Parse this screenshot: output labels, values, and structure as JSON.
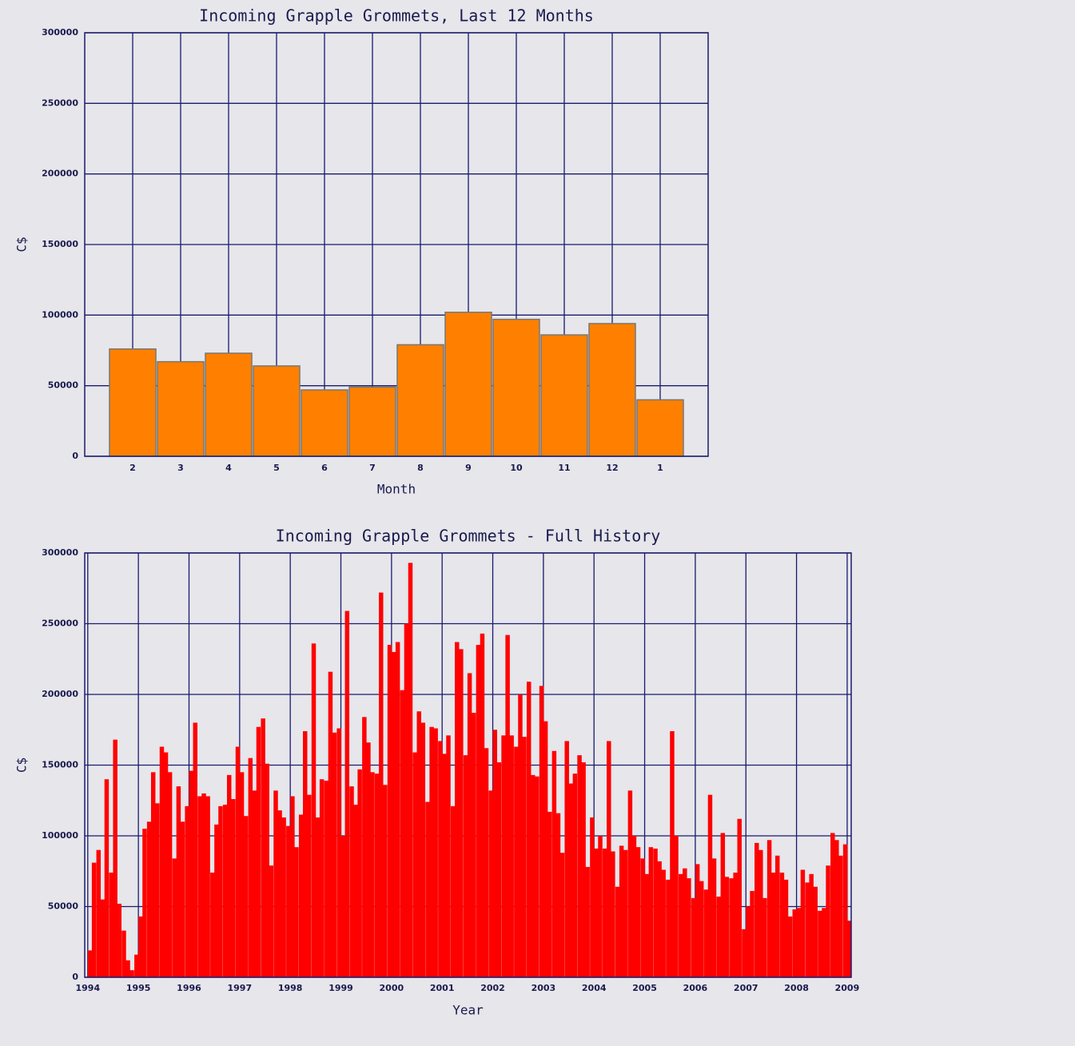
{
  "chart_data": [
    {
      "type": "bar",
      "title": "Incoming Grapple Grommets, Last 12 Months",
      "xlabel": "Month",
      "ylabel": "C$",
      "categories": [
        "2",
        "3",
        "4",
        "5",
        "6",
        "7",
        "8",
        "9",
        "10",
        "11",
        "12",
        "1"
      ],
      "values": [
        76000,
        67000,
        73000,
        64000,
        47000,
        49000,
        79000,
        102000,
        97000,
        86000,
        94000,
        40000
      ],
      "color": "#ff8000",
      "ylim": [
        0,
        300000
      ],
      "yticks": [
        0,
        50000,
        100000,
        150000,
        200000,
        250000,
        300000
      ],
      "grid": true
    },
    {
      "type": "histogram",
      "title": "Incoming Grapple Grommets - Full History",
      "xlabel": "Year",
      "ylabel": "C$",
      "x": [
        1994,
        1994.08,
        1994.17,
        1994.25,
        1994.33,
        1994.42,
        1994.5,
        1994.58,
        1994.67,
        1994.75,
        1994.83,
        1994.92,
        1995,
        1995.08,
        1995.17,
        1995.25,
        1995.33,
        1995.42,
        1995.5,
        1995.58,
        1995.67,
        1995.75,
        1995.83,
        1995.92,
        1996,
        1996.08,
        1996.17,
        1996.25,
        1996.33,
        1996.42,
        1996.5,
        1996.58,
        1996.67,
        1996.75,
        1996.83,
        1996.92,
        1997,
        1997.08,
        1997.17,
        1997.25,
        1997.33,
        1997.42,
        1997.5,
        1997.58,
        1997.67,
        1997.75,
        1997.83,
        1997.92,
        1998,
        1998.08,
        1998.17,
        1998.25,
        1998.33,
        1998.42,
        1998.5,
        1998.58,
        1998.67,
        1998.75,
        1998.83,
        1998.92,
        1999,
        1999.08,
        1999.17,
        1999.25,
        1999.33,
        1999.42,
        1999.5,
        1999.58,
        1999.67,
        1999.75,
        1999.83,
        1999.92,
        2000,
        2000.08,
        2000.17,
        2000.25,
        2000.33,
        2000.42,
        2000.5,
        2000.58,
        2000.67,
        2000.75,
        2000.83,
        2000.92,
        2001,
        2001.08,
        2001.17,
        2001.25,
        2001.33,
        2001.42,
        2001.5,
        2001.58,
        2001.67,
        2001.75,
        2001.83,
        2001.92,
        2002,
        2002.08,
        2002.17,
        2002.25,
        2002.33,
        2002.42,
        2002.5,
        2002.58,
        2002.67,
        2002.75,
        2002.83,
        2002.92,
        2003,
        2003.08,
        2003.17,
        2003.25,
        2003.33,
        2003.42,
        2003.5,
        2003.58,
        2003.67,
        2003.75,
        2003.83,
        2003.92,
        2004,
        2004.08,
        2004.17,
        2004.25,
        2004.33,
        2004.42,
        2004.5,
        2004.58,
        2004.67,
        2004.75,
        2004.83,
        2004.92,
        2005,
        2005.08,
        2005.17,
        2005.25,
        2005.33,
        2005.42,
        2005.5,
        2005.58,
        2005.67,
        2005.75,
        2005.83,
        2005.92,
        2006,
        2006.08,
        2006.17,
        2006.25,
        2006.33,
        2006.42,
        2006.5,
        2006.58,
        2006.67,
        2006.75,
        2006.83,
        2006.92,
        2007,
        2007.08,
        2007.17,
        2007.25,
        2007.33,
        2007.42,
        2007.5,
        2007.58,
        2007.67,
        2007.75,
        2007.83,
        2007.92,
        2008,
        2008.08,
        2008.17,
        2008.25,
        2008.33,
        2008.42,
        2008.5,
        2008.58,
        2008.67,
        2008.75,
        2008.83,
        2008.92,
        2009
      ],
      "values": [
        19000,
        81000,
        90000,
        55000,
        140000,
        74000,
        168000,
        52000,
        33000,
        12000,
        5000,
        16000,
        43000,
        105000,
        110000,
        145000,
        123000,
        163000,
        159000,
        145000,
        84000,
        135000,
        110000,
        121000,
        146000,
        180000,
        128000,
        130000,
        128000,
        74000,
        108000,
        121000,
        122000,
        143000,
        126000,
        163000,
        145000,
        114000,
        155000,
        132000,
        177000,
        183000,
        151000,
        79000,
        132000,
        118000,
        113000,
        107000,
        128000,
        92000,
        115000,
        174000,
        129000,
        236000,
        113000,
        140000,
        139000,
        216000,
        173000,
        176000,
        100000,
        259000,
        135000,
        122000,
        147000,
        184000,
        166000,
        145000,
        144000,
        272000,
        136000,
        235000,
        230000,
        237000,
        203000,
        250000,
        293000,
        159000,
        188000,
        180000,
        124000,
        177000,
        176000,
        167000,
        158000,
        171000,
        121000,
        237000,
        232000,
        157000,
        215000,
        187000,
        235000,
        243000,
        162000,
        132000,
        175000,
        152000,
        171000,
        242000,
        171000,
        163000,
        200000,
        170000,
        209000,
        143000,
        142000,
        206000,
        181000,
        117000,
        160000,
        116000,
        88000,
        167000,
        137000,
        144000,
        157000,
        152000,
        78000,
        113000,
        91000,
        100000,
        91000,
        167000,
        89000,
        64000,
        93000,
        90000,
        132000,
        100000,
        92000,
        84000,
        73000,
        92000,
        91000,
        82000,
        76000,
        69000,
        174000,
        100000,
        73000,
        77000,
        70000,
        56000,
        80000,
        68000,
        62000,
        129000,
        84000,
        57000,
        102000,
        71000,
        70000,
        74000,
        112000,
        34000,
        50000,
        61000,
        95000,
        90000,
        56000,
        97000,
        74000,
        86000,
        74000,
        69000,
        43000,
        48000,
        49000,
        76000,
        67000,
        73000,
        64000,
        47000,
        49000,
        79000,
        102000,
        97000,
        86000,
        94000,
        40000
      ],
      "color": "#ff0000",
      "xlim": [
        1993.94,
        2009.08
      ],
      "xticks": [
        1994,
        1995,
        1996,
        1997,
        1998,
        1999,
        2000,
        2001,
        2002,
        2003,
        2004,
        2005,
        2006,
        2007,
        2008,
        2009
      ],
      "ylim": [
        0,
        300000
      ],
      "yticks": [
        0,
        50000,
        100000,
        150000,
        200000,
        250000,
        300000
      ],
      "grid": true
    }
  ]
}
